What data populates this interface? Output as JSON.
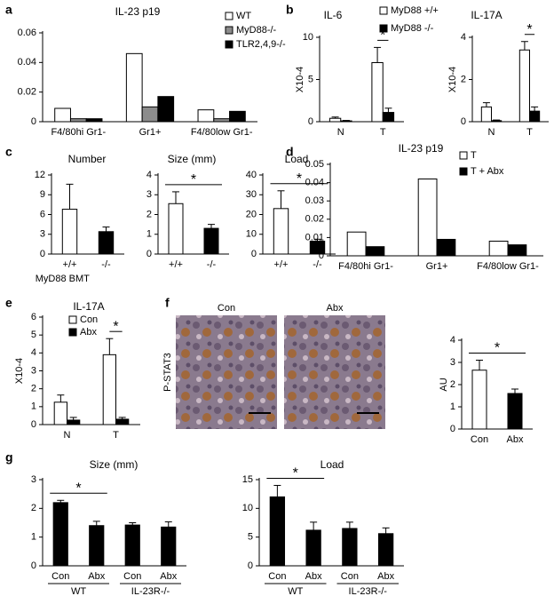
{
  "chart_data": [
    {
      "type": "bar",
      "panel": "a",
      "title": "IL-23 p19",
      "categories": [
        "F4/80hi Gr1-",
        "Gr1+",
        "F4/80low Gr1-"
      ],
      "series": [
        {
          "name": "WT",
          "color": "#ffffff",
          "values": [
            0.009,
            0.046,
            0.008
          ]
        },
        {
          "name": "MyD88-/-",
          "color": "#8c8c8c",
          "values": [
            0.002,
            0.01,
            0.002
          ]
        },
        {
          "name": "TLR2,4,9-/-",
          "color": "#000000",
          "values": [
            0.002,
            0.017,
            0.007
          ]
        }
      ],
      "ylim": [
        0,
        0.06
      ],
      "yticks": [
        0,
        0.02,
        0.04,
        0.06
      ]
    },
    {
      "type": "bar",
      "panel": "b",
      "title": "IL-6",
      "ylabel": "X10-4",
      "categories": [
        "N",
        "T"
      ],
      "series": [
        {
          "name": "MyD88 +/+",
          "color": "#ffffff",
          "values": [
            0.4,
            7.0
          ],
          "errors": [
            0.15,
            1.8
          ]
        },
        {
          "name": "MyD88 -/-",
          "color": "#000000",
          "values": [
            0.1,
            1.1
          ],
          "errors": [
            0.05,
            0.5
          ]
        }
      ],
      "ylim": [
        0,
        10
      ],
      "yticks": [
        0,
        5,
        10
      ],
      "annotations": [
        "*"
      ]
    },
    {
      "type": "bar",
      "title": "IL-17A",
      "ylabel": "X10-4",
      "categories": [
        "N",
        "T"
      ],
      "series": [
        {
          "color": "#ffffff",
          "values": [
            0.7,
            3.4
          ],
          "errors": [
            0.2,
            0.4
          ]
        },
        {
          "color": "#000000",
          "values": [
            0.05,
            0.5
          ],
          "errors": [
            0.03,
            0.2
          ]
        }
      ],
      "ylim": [
        0,
        4
      ],
      "yticks": [
        0,
        2,
        4
      ],
      "annotations": [
        "*"
      ]
    },
    {
      "type": "bar",
      "panel": "c",
      "title": "Number",
      "xlabel": "MyD88 BMT",
      "categories": [
        "+/+",
        "-/-"
      ],
      "values": [
        6.8,
        3.4
      ],
      "errors": [
        3.8,
        0.7
      ],
      "colors": [
        "#ffffff",
        "#000000"
      ],
      "ylim": [
        0,
        12
      ],
      "yticks": [
        0,
        3,
        6,
        9,
        12
      ]
    },
    {
      "type": "bar",
      "title": "Size (mm)",
      "categories": [
        "+/+",
        "-/-"
      ],
      "values": [
        2.55,
        1.3
      ],
      "errors": [
        0.6,
        0.2
      ],
      "colors": [
        "#ffffff",
        "#000000"
      ],
      "ylim": [
        0,
        4
      ],
      "yticks": [
        0,
        1,
        2,
        3,
        4
      ],
      "annotations": [
        "*"
      ]
    },
    {
      "type": "bar",
      "title": "Load",
      "categories": [
        "+/+",
        "-/-"
      ],
      "values": [
        23,
        6.5
      ],
      "errors": [
        9,
        1
      ],
      "colors": [
        "#ffffff",
        "#000000"
      ],
      "ylim": [
        0,
        40
      ],
      "yticks": [
        0,
        10,
        20,
        30,
        40
      ],
      "annotations": [
        "*"
      ]
    },
    {
      "type": "bar",
      "panel": "d",
      "title": "IL-23 p19",
      "categories": [
        "F4/80hi Gr1-",
        "Gr1+",
        "F4/80low Gr1-"
      ],
      "series": [
        {
          "name": "T",
          "color": "#ffffff",
          "values": [
            0.013,
            0.042,
            0.008
          ]
        },
        {
          "name": "T + Abx",
          "color": "#000000",
          "values": [
            0.005,
            0.009,
            0.006
          ]
        }
      ],
      "ylim": [
        0,
        0.05
      ],
      "yticks": [
        0,
        0.01,
        0.02,
        0.03,
        0.04,
        0.05
      ]
    },
    {
      "type": "bar",
      "panel": "e",
      "title": "IL-17A",
      "ylabel": "X10-4",
      "categories": [
        "N",
        "T"
      ],
      "series": [
        {
          "name": "Con",
          "color": "#ffffff",
          "values": [
            1.25,
            3.9
          ],
          "errors": [
            0.4,
            0.9
          ]
        },
        {
          "name": "Abx",
          "color": "#000000",
          "values": [
            0.25,
            0.3
          ],
          "errors": [
            0.15,
            0.1
          ]
        }
      ],
      "ylim": [
        0,
        6
      ],
      "yticks": [
        0,
        1,
        2,
        3,
        4,
        5,
        6
      ],
      "annotations": [
        "*"
      ]
    },
    {
      "type": "bar",
      "panel": "f",
      "image_labels": [
        "Con",
        "Abx"
      ],
      "image_ylabel": "P-STAT3",
      "ylabel": "AU",
      "categories": [
        "Con",
        "Abx"
      ],
      "values": [
        2.65,
        1.6
      ],
      "errors": [
        0.45,
        0.2
      ],
      "colors": [
        "#ffffff",
        "#000000"
      ],
      "ylim": [
        0,
        4
      ],
      "yticks": [
        0,
        1,
        2,
        3,
        4
      ],
      "annotations": [
        "*"
      ]
    },
    {
      "type": "bar",
      "panel": "g",
      "title": "Size (mm)",
      "categories": [
        "Con",
        "Abx",
        "Con",
        "Abx"
      ],
      "group_labels": [
        "WT",
        "IL-23R-/-"
      ],
      "values": [
        2.2,
        1.4,
        1.42,
        1.35
      ],
      "errors": [
        0.08,
        0.15,
        0.08,
        0.18
      ],
      "colors": [
        "#000000",
        "#000000",
        "#000000",
        "#000000"
      ],
      "ylim": [
        0,
        3
      ],
      "yticks": [
        0,
        1,
        2,
        3
      ],
      "annotations": [
        "*"
      ]
    },
    {
      "type": "bar",
      "title": "Load",
      "categories": [
        "Con",
        "Abx",
        "Con",
        "Abx"
      ],
      "group_labels": [
        "WT",
        "IL-23R-/-"
      ],
      "values": [
        12,
        6.2,
        6.5,
        5.6
      ],
      "errors": [
        2,
        1.4,
        1.1,
        1.0
      ],
      "colors": [
        "#000000",
        "#000000",
        "#000000",
        "#000000"
      ],
      "ylim": [
        0,
        15
      ],
      "yticks": [
        0,
        5,
        10,
        15
      ],
      "annotations": [
        "*"
      ]
    }
  ]
}
